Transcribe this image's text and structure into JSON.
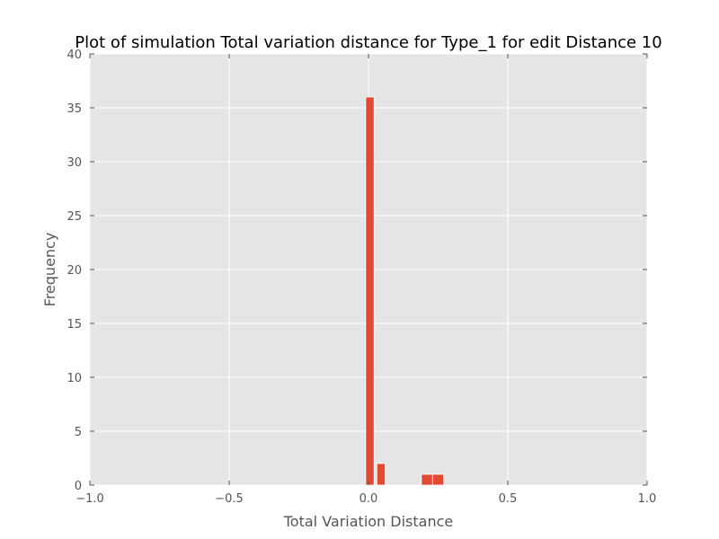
{
  "chart_data": {
    "type": "bar",
    "title": "Plot of simulation Total variation distance for Type_1 for edit Distance 10",
    "xlabel": "Total Variation Distance",
    "ylabel": "Frequency",
    "xlim": [
      -1.0,
      1.0
    ],
    "ylim": [
      0,
      40
    ],
    "x_ticks": [
      -1.0,
      -0.5,
      0.0,
      0.5,
      1.0
    ],
    "x_tick_labels": [
      "−1.0",
      "−0.5",
      "0.0",
      "0.5",
      "1.0"
    ],
    "y_ticks": [
      0,
      5,
      10,
      15,
      20,
      25,
      30,
      35,
      40
    ],
    "y_tick_labels": [
      "0",
      "5",
      "10",
      "15",
      "20",
      "25",
      "30",
      "35",
      "40"
    ],
    "grid": true,
    "bars": [
      {
        "x0": -0.01,
        "x1": 0.02,
        "value": 36
      },
      {
        "x0": 0.03,
        "x1": 0.06,
        "value": 2
      },
      {
        "x0": 0.19,
        "x1": 0.23,
        "value": 1
      },
      {
        "x0": 0.23,
        "x1": 0.27,
        "value": 1
      }
    ],
    "colors": {
      "background": "#e5e5e5",
      "bar": "#e24a33",
      "grid": "#ffffff",
      "tick": "#555555"
    }
  }
}
